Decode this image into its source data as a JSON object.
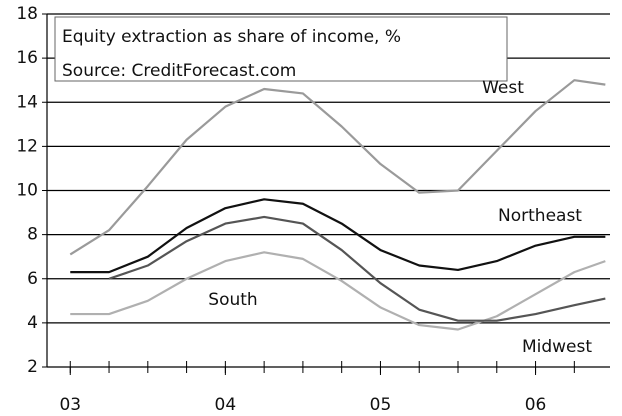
{
  "chart_data": {
    "type": "line",
    "title": "Equity extraction as share of income, %",
    "subtitle": "Source: CreditForecast.com",
    "x": [
      2003,
      2003.25,
      2003.5,
      2003.75,
      2004,
      2004.25,
      2004.5,
      2004.75,
      2005,
      2005.25,
      2005.5,
      2005.75,
      2006,
      2006.25,
      2006.45
    ],
    "series": [
      {
        "name": "West",
        "color": "#9a9a9a",
        "values": [
          7.1,
          8.2,
          10.2,
          12.3,
          13.8,
          14.6,
          14.4,
          12.9,
          11.2,
          9.9,
          10.0,
          11.8,
          13.6,
          15.0,
          14.8
        ]
      },
      {
        "name": "Northeast",
        "color": "#111111",
        "values": [
          6.3,
          6.3,
          7.0,
          8.3,
          9.2,
          9.6,
          9.4,
          8.5,
          7.3,
          6.6,
          6.4,
          6.8,
          7.5,
          7.9,
          7.9
        ]
      },
      {
        "name": "South",
        "color": "#b0b0b0",
        "values": [
          4.4,
          4.4,
          5.0,
          6.0,
          6.8,
          7.2,
          6.9,
          5.9,
          4.7,
          3.9,
          3.7,
          4.3,
          5.3,
          6.3,
          6.8
        ]
      },
      {
        "name": "Midwest",
        "color": "#555555",
        "values": [
          null,
          6.0,
          6.6,
          7.7,
          8.5,
          8.8,
          8.5,
          7.3,
          5.8,
          4.6,
          4.1,
          4.1,
          4.4,
          4.8,
          5.1
        ]
      }
    ],
    "xlim": [
      2002.85,
      2006.48
    ],
    "ylim": [
      2,
      18
    ],
    "xticks": [
      {
        "value": 2003,
        "label": "03"
      },
      {
        "value": 2004,
        "label": "04"
      },
      {
        "value": 2005,
        "label": "05"
      },
      {
        "value": 2006,
        "label": "06"
      }
    ],
    "xminorticks": [
      2003,
      2003.25,
      2003.5,
      2003.75,
      2004,
      2004.25,
      2004.5,
      2004.75,
      2005,
      2005.25,
      2005.5,
      2005.75,
      2006,
      2006.25
    ],
    "yticks": [
      2,
      4,
      6,
      8,
      10,
      12,
      14,
      16,
      18
    ],
    "grid": true
  }
}
